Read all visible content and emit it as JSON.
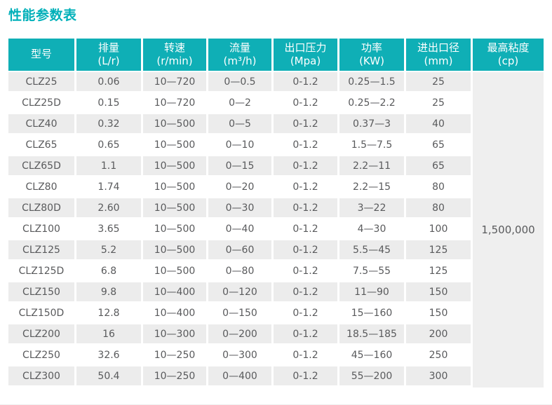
{
  "page": {
    "title": "性能参数表"
  },
  "colors": {
    "accent_teal_header": "#0fafb6",
    "title_teal": "#00b0b9",
    "row_stripe_gray": "#ececec",
    "merged_cell_gray": "#efefef",
    "cell_text": "#595a5c"
  },
  "table": {
    "columns": [
      {
        "label": "型号",
        "unit": ""
      },
      {
        "label": "排量",
        "unit": "(L/r)"
      },
      {
        "label": "转速",
        "unit": "(r/min)"
      },
      {
        "label": "流量",
        "unit": "(m³/h)"
      },
      {
        "label": "出口压力",
        "unit": "(Mpa)"
      },
      {
        "label": "功率",
        "unit": "(KW)"
      },
      {
        "label": "进出口径",
        "unit": "(mm)"
      },
      {
        "label": "最高粘度",
        "unit": "(cp)"
      }
    ],
    "rows": [
      [
        "CLZ25",
        "0.06",
        "10—720",
        "0—0.5",
        "0-1.2",
        "0.25—1.5",
        "25"
      ],
      [
        "CLZ25D",
        "0.15",
        "10—720",
        "0—2",
        "0-1.2",
        "0.25—2.2",
        "25"
      ],
      [
        "CLZ40",
        "0.32",
        "10—500",
        "0—5",
        "0-1.2",
        "0.37—3",
        "40"
      ],
      [
        "CLZ65",
        "0.65",
        "10—500",
        "0—10",
        "0-1.2",
        "1.5—7.5",
        "65"
      ],
      [
        "CLZ65D",
        "1.1",
        "10—500",
        "0—15",
        "0-1.2",
        "2.2—11",
        "65"
      ],
      [
        "CLZ80",
        "1.74",
        "10—500",
        "0—20",
        "0-1.2",
        "2.2—15",
        "80"
      ],
      [
        "CLZ80D",
        "2.60",
        "10—500",
        "0—30",
        "0-1.2",
        "3—22",
        "80"
      ],
      [
        "CLZ100",
        "3.65",
        "10—500",
        "0—40",
        "0-1.2",
        "4—30",
        "100"
      ],
      [
        "CLZ125",
        "5.2",
        "10—500",
        "0—60",
        "0-1.2",
        "5.5—45",
        "125"
      ],
      [
        "CLZ125D",
        "6.8",
        "10—500",
        "0—80",
        "0-1.2",
        "7.5—55",
        "125"
      ],
      [
        "CLZ150",
        "9.8",
        "10—400",
        "0—120",
        "0-1.2",
        "11—90",
        "150"
      ],
      [
        "CLZ150D",
        "12.8",
        "10—400",
        "0—150",
        "0-1.2",
        "15—160",
        "150"
      ],
      [
        "CLZ200",
        "16",
        "10—300",
        "0—200",
        "0-1.2",
        "18.5—185",
        "200"
      ],
      [
        "CLZ250",
        "32.6",
        "10—250",
        "0—300",
        "0-1.2",
        "45—160",
        "250"
      ],
      [
        "CLZ300",
        "50.4",
        "10—250",
        "0—400",
        "0-1.2",
        "55—200",
        "300"
      ]
    ],
    "merged_last_column_value": "1,500,000"
  }
}
